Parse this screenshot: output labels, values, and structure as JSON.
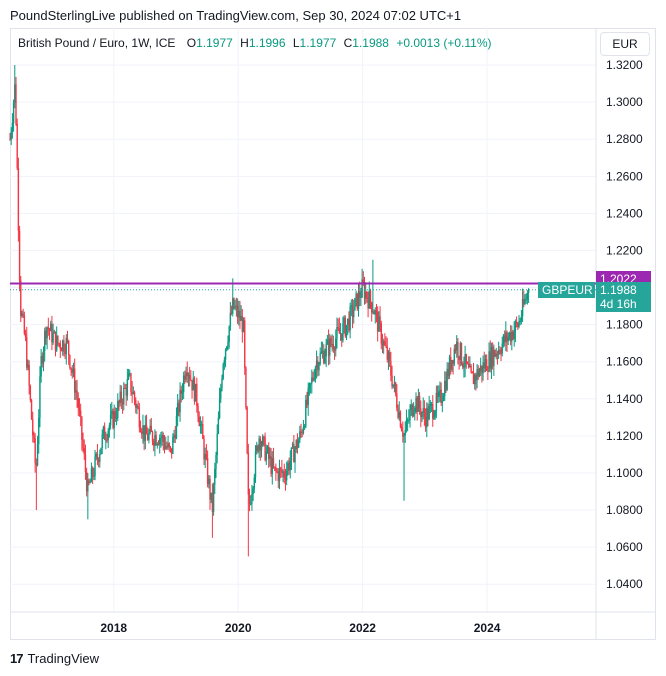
{
  "header": {
    "attribution": "PoundSterlingLive published on TradingView.com, Sep 30, 2024 07:02 UTC+1"
  },
  "legend": {
    "symbol": "British Pound / Euro, 1W, ICE",
    "open_label": "O",
    "open": "1.1977",
    "high_label": "H",
    "high": "1.1996",
    "low_label": "L",
    "low": "1.1977",
    "close_label": "C",
    "close": "1.1988",
    "change": "+0.0013 (+0.11%)"
  },
  "currency_button": "EUR",
  "tags": {
    "level_value": "1.2022",
    "ticker": "GBPEUR",
    "price": "1.1988",
    "countdown": "4d 16h"
  },
  "footer": {
    "logo_text": "17",
    "brand": "TradingView"
  },
  "colors": {
    "up": "#089981",
    "down": "#f23645",
    "level_line": "#9c27b0",
    "price_tag": "#26a69a"
  },
  "chart_data": {
    "type": "candlestick",
    "title": "British Pound / Euro, 1W, ICE",
    "ylim": [
      1.025,
      1.34
    ],
    "yticks": [
      "1.0400",
      "1.0600",
      "1.0800",
      "1.1000",
      "1.1200",
      "1.1400",
      "1.1600",
      "1.1800",
      "1.2000",
      "1.2200",
      "1.2400",
      "1.2600",
      "1.2800",
      "1.3000",
      "1.3200"
    ],
    "xticks": [
      "2018",
      "2020",
      "2022",
      "2024"
    ],
    "xrange": [
      "2016-05",
      "2025-10"
    ],
    "horizontal_level": 1.2022,
    "last_close": 1.1988,
    "path": [
      [
        "2016-05",
        1.28
      ],
      [
        "2016-06",
        1.31
      ],
      [
        "2016-07",
        1.19
      ],
      [
        "2016-08",
        1.17
      ],
      [
        "2016-10",
        1.1
      ],
      [
        "2016-11",
        1.16
      ],
      [
        "2016-12",
        1.18
      ],
      [
        "2017-02",
        1.17
      ],
      [
        "2017-04",
        1.17
      ],
      [
        "2017-06",
        1.14
      ],
      [
        "2017-08",
        1.09
      ],
      [
        "2017-09",
        1.1
      ],
      [
        "2017-11",
        1.12
      ],
      [
        "2018-01",
        1.13
      ],
      [
        "2018-04",
        1.15
      ],
      [
        "2018-07",
        1.12
      ],
      [
        "2018-10",
        1.12
      ],
      [
        "2018-12",
        1.11
      ],
      [
        "2019-03",
        1.16
      ],
      [
        "2019-05",
        1.14
      ],
      [
        "2019-08",
        1.08
      ],
      [
        "2019-10",
        1.16
      ],
      [
        "2019-12",
        1.19
      ],
      [
        "2020-02",
        1.18
      ],
      [
        "2020-03",
        1.08
      ],
      [
        "2020-05",
        1.12
      ],
      [
        "2020-08",
        1.1
      ],
      [
        "2020-10",
        1.1
      ],
      [
        "2021-01",
        1.12
      ],
      [
        "2021-04",
        1.16
      ],
      [
        "2021-07",
        1.17
      ],
      [
        "2021-10",
        1.18
      ],
      [
        "2022-01",
        1.2
      ],
      [
        "2022-03",
        1.19
      ],
      [
        "2022-06",
        1.16
      ],
      [
        "2022-09",
        1.12
      ],
      [
        "2022-11",
        1.14
      ],
      [
        "2023-01",
        1.13
      ],
      [
        "2023-04",
        1.14
      ],
      [
        "2023-07",
        1.17
      ],
      [
        "2023-10",
        1.15
      ],
      [
        "2024-01",
        1.16
      ],
      [
        "2024-04",
        1.17
      ],
      [
        "2024-07",
        1.18
      ],
      [
        "2024-09",
        1.1988
      ]
    ],
    "spikes": [
      [
        "2016-10",
        1.08
      ],
      [
        "2017-08",
        1.075
      ],
      [
        "2019-08",
        1.065
      ],
      [
        "2020-03",
        1.055
      ],
      [
        "2016-06",
        1.32
      ],
      [
        "2022-03",
        1.215
      ],
      [
        "2022-09",
        1.085
      ],
      [
        "2019-12",
        1.205
      ]
    ]
  }
}
